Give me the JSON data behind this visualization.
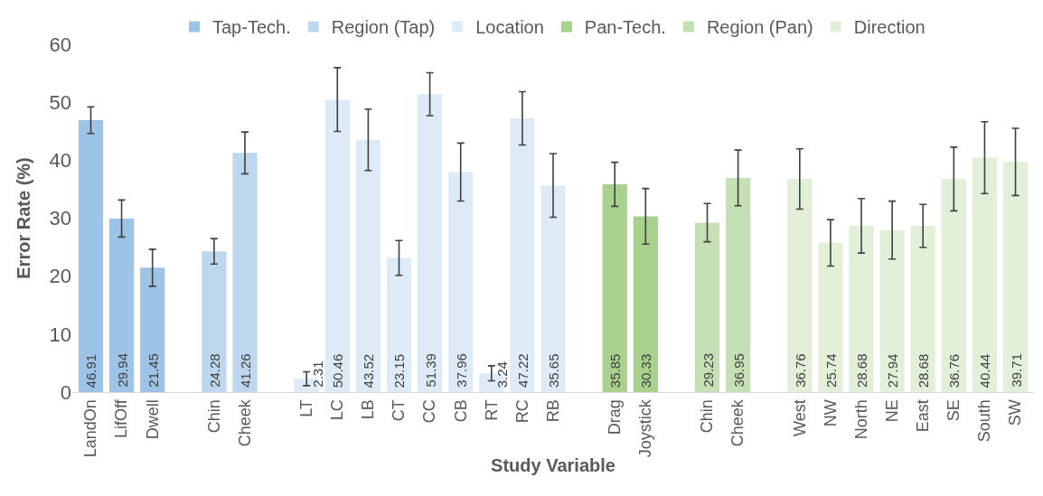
{
  "chart_data": {
    "type": "bar",
    "xlabel": "Study Variable",
    "ylabel": "Error Rate (%)",
    "categories": [
      "LandOn",
      "LifOff",
      "Dwell",
      null,
      "Chin",
      "Cheek",
      null,
      "LT",
      "LC",
      "LB",
      "CT",
      "CC",
      "CB",
      "RT",
      "RC",
      "RB",
      null,
      "Drag",
      "Joystick",
      null,
      "Chin",
      "Cheek",
      null,
      "West",
      "NW",
      "North",
      "NE",
      "East",
      "SE",
      "South",
      "SW"
    ],
    "series": [
      {
        "name": "Tap-Tech.",
        "color": "#9dc3e6",
        "values": [
          46.91,
          29.94,
          21.45,
          null,
          null,
          null,
          null,
          null,
          null,
          null,
          null,
          null,
          null,
          null,
          null,
          null,
          null,
          null,
          null,
          null,
          null,
          null,
          null,
          null,
          null,
          null,
          null,
          null,
          null,
          null,
          null
        ],
        "errors": [
          2.3,
          3.2,
          3.2,
          null,
          null,
          null,
          null,
          null,
          null,
          null,
          null,
          null,
          null,
          null,
          null,
          null,
          null,
          null,
          null,
          null,
          null,
          null,
          null,
          null,
          null,
          null,
          null,
          null,
          null,
          null,
          null
        ]
      },
      {
        "name": "Region (Tap)",
        "color": "#bdd7ee",
        "values": [
          null,
          null,
          null,
          null,
          24.28,
          41.26,
          null,
          null,
          null,
          null,
          null,
          null,
          null,
          null,
          null,
          null,
          null,
          null,
          null,
          null,
          null,
          null,
          null,
          null,
          null,
          null,
          null,
          null,
          null,
          null,
          null
        ],
        "errors": [
          null,
          null,
          null,
          null,
          2.2,
          3.6,
          null,
          null,
          null,
          null,
          null,
          null,
          null,
          null,
          null,
          null,
          null,
          null,
          null,
          null,
          null,
          null,
          null,
          null,
          null,
          null,
          null,
          null,
          null,
          null,
          null
        ]
      },
      {
        "name": "Location",
        "color": "#deebf7",
        "values": [
          null,
          null,
          null,
          null,
          null,
          null,
          null,
          2.31,
          50.46,
          43.52,
          23.15,
          51.39,
          37.96,
          3.24,
          47.22,
          35.65,
          null,
          null,
          null,
          null,
          null,
          null,
          null,
          null,
          null,
          null,
          null,
          null,
          null,
          null,
          null
        ],
        "errors": [
          null,
          null,
          null,
          null,
          null,
          null,
          null,
          1.2,
          5.5,
          5.3,
          3.0,
          3.7,
          5.0,
          1.3,
          4.6,
          5.5,
          null,
          null,
          null,
          null,
          null,
          null,
          null,
          null,
          null,
          null,
          null,
          null,
          null,
          null,
          null
        ]
      },
      {
        "name": "Pan-Tech.",
        "color": "#a9d18e",
        "values": [
          null,
          null,
          null,
          null,
          null,
          null,
          null,
          null,
          null,
          null,
          null,
          null,
          null,
          null,
          null,
          null,
          null,
          35.85,
          30.33,
          null,
          null,
          null,
          null,
          null,
          null,
          null,
          null,
          null,
          null,
          null,
          null
        ],
        "errors": [
          null,
          null,
          null,
          null,
          null,
          null,
          null,
          null,
          null,
          null,
          null,
          null,
          null,
          null,
          null,
          null,
          null,
          3.8,
          4.8,
          null,
          null,
          null,
          null,
          null,
          null,
          null,
          null,
          null,
          null,
          null,
          null
        ]
      },
      {
        "name": "Region (Pan)",
        "color": "#c5e0b4",
        "values": [
          null,
          null,
          null,
          null,
          null,
          null,
          null,
          null,
          null,
          null,
          null,
          null,
          null,
          null,
          null,
          null,
          null,
          null,
          null,
          null,
          29.23,
          36.95,
          null,
          null,
          null,
          null,
          null,
          null,
          null,
          null,
          null
        ],
        "errors": [
          null,
          null,
          null,
          null,
          null,
          null,
          null,
          null,
          null,
          null,
          null,
          null,
          null,
          null,
          null,
          null,
          null,
          null,
          null,
          null,
          3.3,
          4.8,
          null,
          null,
          null,
          null,
          null,
          null,
          null,
          null,
          null
        ]
      },
      {
        "name": "Direction",
        "color": "#e2f0d9",
        "values": [
          null,
          null,
          null,
          null,
          null,
          null,
          null,
          null,
          null,
          null,
          null,
          null,
          null,
          null,
          null,
          null,
          null,
          null,
          null,
          null,
          null,
          null,
          null,
          36.76,
          25.74,
          28.68,
          27.94,
          28.68,
          36.76,
          40.44,
          39.71
        ],
        "errors": [
          null,
          null,
          null,
          null,
          null,
          null,
          null,
          null,
          null,
          null,
          null,
          null,
          null,
          null,
          null,
          null,
          null,
          null,
          null,
          null,
          null,
          null,
          null,
          5.2,
          4.0,
          4.7,
          5.0,
          3.7,
          5.5,
          6.2,
          5.8
        ]
      }
    ],
    "ylim": [
      0,
      60
    ],
    "yticks": [
      0,
      10,
      20,
      30,
      40,
      50,
      60
    ],
    "data_labels": true,
    "grid": false,
    "legend": "top"
  }
}
